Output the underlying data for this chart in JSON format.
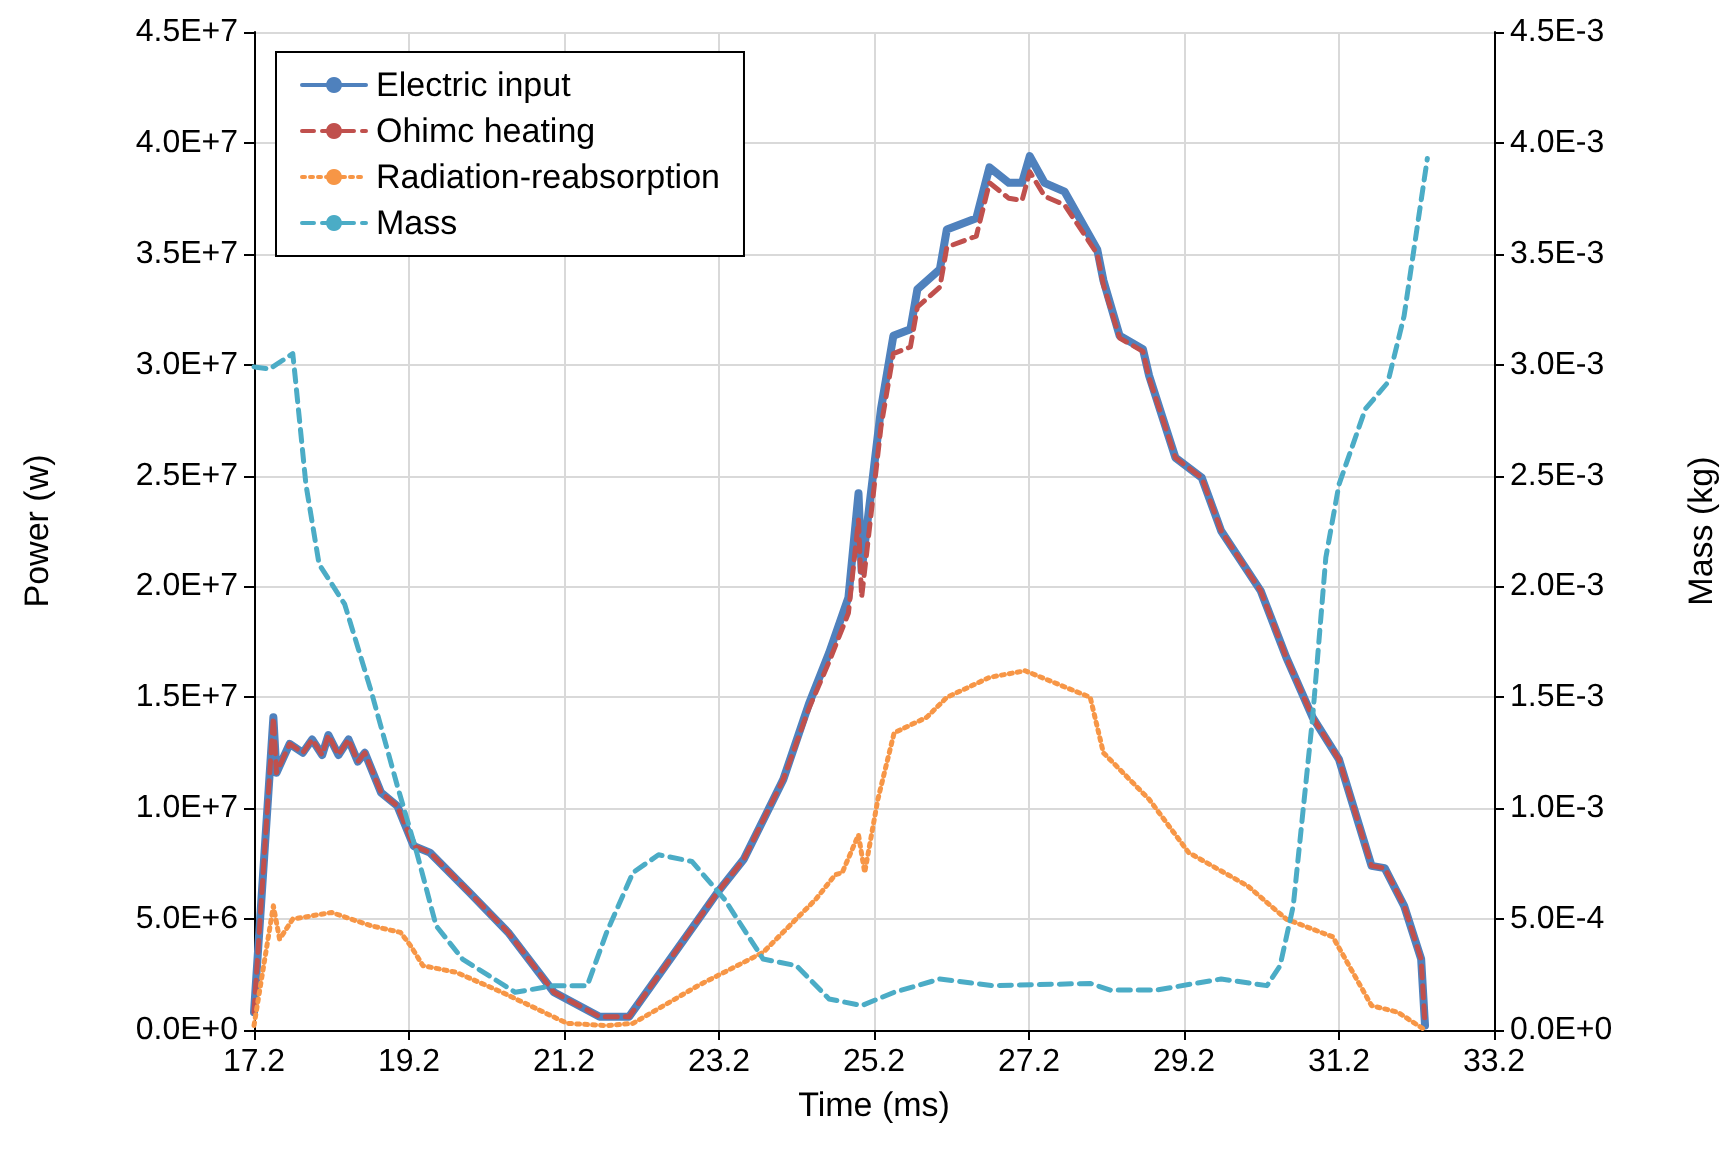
{
  "chart_data": {
    "type": "line",
    "xlabel": "Time (ms)",
    "ylabel": "Power (w)",
    "y2label": "Mass (kg)",
    "xlim": [
      17.2,
      33.2
    ],
    "xticks": [
      17.2,
      19.2,
      21.2,
      23.2,
      25.2,
      27.2,
      29.2,
      31.2,
      33.2
    ],
    "ylim": [
      0,
      45000000.0
    ],
    "yticks": [
      {
        "value": 0,
        "label": "0.0E+0"
      },
      {
        "value": 5000000.0,
        "label": "5.0E+6"
      },
      {
        "value": 10000000.0,
        "label": "1.0E+7"
      },
      {
        "value": 15000000.0,
        "label": "1.5E+7"
      },
      {
        "value": 20000000.0,
        "label": "2.0E+7"
      },
      {
        "value": 25000000.0,
        "label": "2.5E+7"
      },
      {
        "value": 30000000.0,
        "label": "3.0E+7"
      },
      {
        "value": 35000000.0,
        "label": "3.5E+7"
      },
      {
        "value": 40000000.0,
        "label": "4.0E+7"
      },
      {
        "value": 45000000.0,
        "label": "4.5E+7"
      }
    ],
    "y2lim": [
      0,
      0.0045
    ],
    "y2ticks": [
      {
        "value": 0,
        "label": "0.0E+0"
      },
      {
        "value": 0.0005,
        "label": "5.0E-4"
      },
      {
        "value": 0.001,
        "label": "1.0E-3"
      },
      {
        "value": 0.0015,
        "label": "1.5E-3"
      },
      {
        "value": 0.002,
        "label": "2.0E-3"
      },
      {
        "value": 0.0025,
        "label": "2.5E-3"
      },
      {
        "value": 0.003,
        "label": "3.0E-3"
      },
      {
        "value": 0.0035,
        "label": "3.5E-3"
      },
      {
        "value": 0.004,
        "label": "4.0E-3"
      },
      {
        "value": 0.0045,
        "label": "4.5E-3"
      }
    ],
    "grid": true,
    "legend": "top left",
    "marker": "none",
    "series": [
      {
        "name": "Electric input",
        "color": "#4f81bd",
        "line_style": "solid",
        "x": [
          17.2,
          17.45,
          17.49,
          17.66,
          17.83,
          17.95,
          18.08,
          18.16,
          18.29,
          18.42,
          18.54,
          18.63,
          18.84,
          19.05,
          19.26,
          19.47,
          19.98,
          20.48,
          21.07,
          21.66,
          22.04,
          22.51,
          23.18,
          23.52,
          24.03,
          24.36,
          24.62,
          24.87,
          25.0,
          25.04,
          25.29,
          25.45,
          25.67,
          25.76,
          26.05,
          26.14,
          26.52,
          26.69,
          26.94,
          27.11,
          27.21,
          27.4,
          27.66,
          28.08,
          28.16,
          28.37,
          28.67,
          28.75,
          29.09,
          29.43,
          29.68,
          30.19,
          30.52,
          30.86,
          31.2,
          31.62,
          31.79,
          32.04,
          32.26,
          32.31
        ],
        "values": [
          800000.0,
          14100000.0,
          11600000.0,
          12900000.0,
          12500000.0,
          13100000.0,
          12400000.0,
          13300000.0,
          12400000.0,
          13100000.0,
          12100000.0,
          12500000.0,
          10700000.0,
          10100000.0,
          8300000.0,
          8000000.0,
          6200000.0,
          4400000.0,
          1700000.0,
          600000.0,
          600000.0,
          2900000.0,
          6200000.0,
          7700000.0,
          11300000.0,
          14700000.0,
          17000000.0,
          19500000.0,
          24200000.0,
          20700000.0,
          28000000.0,
          31300000.0,
          31600000.0,
          33400000.0,
          34300000.0,
          36100000.0,
          36600000.0,
          38900000.0,
          38200000.0,
          38200000.0,
          39400000.0,
          38200000.0,
          37800000.0,
          35200000.0,
          33800000.0,
          31300000.0,
          30700000.0,
          29500000.0,
          25800000.0,
          24900000.0,
          22500000.0,
          19800000.0,
          16800000.0,
          14100000.0,
          12200000.0,
          7400000.0,
          7300000.0,
          5600000.0,
          3200000.0,
          200000.0
        ]
      },
      {
        "name": "Ohimc heating",
        "color": "#c0504d",
        "line_style": "dashed",
        "x": [
          17.2,
          17.45,
          17.49,
          17.66,
          17.83,
          17.95,
          18.08,
          18.16,
          18.29,
          18.42,
          18.54,
          18.63,
          18.84,
          19.05,
          19.26,
          19.47,
          19.98,
          20.48,
          21.07,
          21.66,
          22.04,
          22.51,
          23.18,
          23.52,
          24.03,
          24.36,
          24.62,
          24.87,
          25.0,
          25.04,
          25.29,
          25.45,
          25.67,
          25.76,
          26.05,
          26.14,
          26.52,
          26.69,
          26.94,
          27.11,
          27.21,
          27.4,
          27.66,
          28.08,
          28.16,
          28.37,
          28.67,
          28.75,
          29.09,
          29.43,
          29.68,
          30.19,
          30.52,
          30.86,
          31.2,
          31.62,
          31.79,
          32.04,
          32.26,
          32.31
        ],
        "values": [
          800000.0,
          14100000.0,
          11600000.0,
          12900000.0,
          12500000.0,
          13100000.0,
          12400000.0,
          13300000.0,
          12400000.0,
          13100000.0,
          12100000.0,
          12500000.0,
          10700000.0,
          10100000.0,
          8300000.0,
          8000000.0,
          6200000.0,
          4400000.0,
          1700000.0,
          600000.0,
          600000.0,
          2900000.0,
          6200000.0,
          7700000.0,
          11300000.0,
          14500000.0,
          16600000.0,
          18800000.0,
          23000000.0,
          19500000.0,
          27200000.0,
          30500000.0,
          30800000.0,
          32600000.0,
          33500000.0,
          35300000.0,
          35800000.0,
          38200000.0,
          37500000.0,
          37400000.0,
          38700000.0,
          37600000.0,
          37200000.0,
          35000000.0,
          33600000.0,
          31200000.0,
          30600000.0,
          29400000.0,
          25800000.0,
          24900000.0,
          22500000.0,
          19800000.0,
          16800000.0,
          14100000.0,
          12200000.0,
          7400000.0,
          7300000.0,
          5600000.0,
          3200000.0,
          200000.0
        ]
      },
      {
        "name": "Radiation-reabsorption",
        "color": "#f79646",
        "line_style": "dotted",
        "x": [
          17.2,
          17.45,
          17.53,
          17.7,
          18.2,
          18.71,
          19.09,
          19.22,
          19.38,
          19.81,
          20.4,
          21.24,
          21.75,
          22.09,
          22.93,
          23.77,
          24.45,
          24.7,
          24.79,
          25.0,
          25.08,
          25.25,
          25.46,
          25.88,
          26.14,
          26.69,
          27.15,
          27.57,
          27.99,
          28.16,
          28.75,
          29.26,
          30.02,
          30.52,
          31.12,
          31.62,
          31.96,
          32.31
        ],
        "values": [
          200000.0,
          5600000.0,
          4100000.0,
          5000000.0,
          5300000.0,
          4700000.0,
          4400000.0,
          3800000.0,
          2900000.0,
          2600000.0,
          1700000.0,
          300000.0,
          200000.0,
          300000.0,
          2000000.0,
          3500000.0,
          5900000.0,
          7000000.0,
          7100000.0,
          8800000.0,
          7100000.0,
          10400000.0,
          13400000.0,
          14100000.0,
          15000000.0,
          15900000.0,
          16200000.0,
          15600000.0,
          15000000.0,
          12500000.0,
          10400000.0,
          8000000.0,
          6500000.0,
          5000000.0,
          4200000.0,
          1100000.0,
          800000.0,
          0
        ]
      },
      {
        "name": "Mass",
        "color": "#4bacc6",
        "line_style": "dashed",
        "axis": "y2",
        "x": [
          17.2,
          17.4,
          17.7,
          17.73,
          17.87,
          18.04,
          18.37,
          18.71,
          19.05,
          19.3,
          19.55,
          19.89,
          20.57,
          21.07,
          21.5,
          21.75,
          22.09,
          22.42,
          22.85,
          23.27,
          23.77,
          24.2,
          24.62,
          25.04,
          25.46,
          26.05,
          26.73,
          27.99,
          28.25,
          28.84,
          29.68,
          30.27,
          30.44,
          30.61,
          30.86,
          31.03,
          31.2,
          31.54,
          31.83,
          32.04,
          32.34
        ],
        "values": [
          0.00299,
          0.00298,
          0.00305,
          0.00295,
          0.00246,
          0.0021,
          0.00192,
          0.00153,
          0.0011,
          0.0008,
          0.00047,
          0.00032,
          0.00017,
          0.0002,
          0.0002,
          0.00044,
          0.00071,
          0.00079,
          0.00076,
          0.00059,
          0.00032,
          0.00029,
          0.00014,
          0.00011,
          0.00017,
          0.00023,
          0.0002,
          0.00021,
          0.00018,
          0.00018,
          0.00023,
          0.0002,
          0.00029,
          0.00056,
          0.00141,
          0.00213,
          0.00246,
          0.0028,
          0.00292,
          0.00322,
          0.00393
        ]
      }
    ]
  }
}
